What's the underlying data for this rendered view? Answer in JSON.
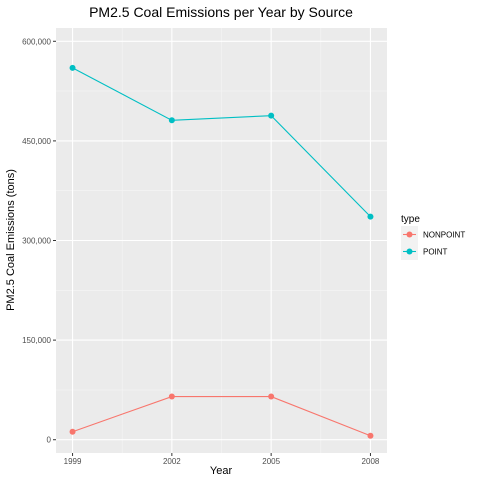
{
  "chart_data": {
    "type": "line",
    "title": "PM2.5 Coal Emissions per Year by Source",
    "xlabel": "Year",
    "ylabel": "PM2.5 Coal Emissions (tons)",
    "x": [
      1999,
      2002,
      2005,
      2008
    ],
    "x_tick_labels": [
      "1999",
      "2002",
      "2005",
      "2008"
    ],
    "y_ticks": [
      0,
      150000,
      300000,
      450000,
      600000
    ],
    "y_tick_labels": [
      "0",
      "150,000",
      "300,000",
      "450,000",
      "600,000"
    ],
    "xlim": [
      1998.5,
      2008.5
    ],
    "ylim": [
      -20000,
      620000
    ],
    "grid": true,
    "legend_position": "right",
    "legend_title": "type",
    "series": [
      {
        "name": "NONPOINT",
        "color": "#F8766D",
        "values": [
          12000,
          65000,
          65000,
          6000
        ]
      },
      {
        "name": "POINT",
        "color": "#00BFC4",
        "values": [
          560000,
          481000,
          488000,
          336000
        ]
      }
    ]
  }
}
